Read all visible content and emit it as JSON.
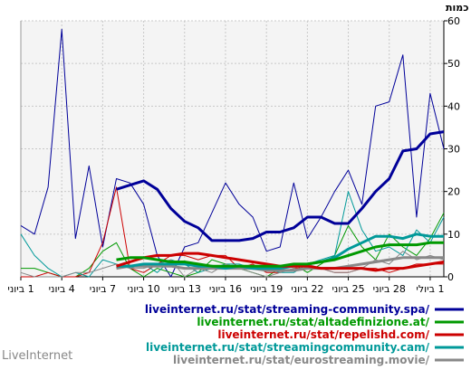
{
  "brand": "LiveInternet",
  "chart_data": {
    "type": "line",
    "ylabel": "כמות",
    "ylim": [
      0,
      60
    ],
    "yticks": [
      0,
      10,
      20,
      30,
      40,
      50,
      60
    ],
    "grid": true,
    "legend_position": "bottom-right",
    "xtick_labels": [
      "1 ביוני",
      "4 ביוני",
      "7 ביוני",
      "10 ביוני",
      "13 ביוני",
      "16 ביוני",
      "19 ביוני",
      "22 ביוני",
      "25 ביוני",
      "28 ביוני",
      "1 ביולי"
    ],
    "xtick_index": [
      0,
      3,
      6,
      9,
      12,
      15,
      18,
      21,
      24,
      27,
      30
    ],
    "series": [
      {
        "name": "liveinternet.ru/stat/streaming-community.spa/",
        "color": "#000099",
        "daily": [
          12,
          10,
          21,
          58,
          9,
          26,
          7,
          23,
          22,
          17,
          5,
          0,
          7,
          8,
          15,
          22,
          17,
          14,
          6,
          7,
          22,
          9,
          14,
          20,
          25,
          17,
          40,
          41,
          52,
          14,
          43,
          30
        ],
        "average": [
          null,
          null,
          null,
          null,
          null,
          null,
          null,
          20.5,
          21.5,
          22.5,
          20.5,
          16,
          13,
          11.5,
          8.5,
          8.5,
          8.5,
          9,
          10.5,
          10.5,
          11.5,
          14,
          14,
          12.5,
          12.5,
          16,
          20,
          23,
          29.5,
          30,
          33.5,
          34
        ]
      },
      {
        "name": "liveinternet.ru/stat/altadefinizione.at/",
        "color": "#009900",
        "daily": [
          2,
          2,
          1,
          0,
          0,
          2,
          6,
          8,
          2,
          0,
          2,
          1,
          0,
          1,
          4,
          3,
          2,
          1,
          0,
          2,
          3,
          1,
          3,
          5,
          12,
          7,
          4,
          10,
          7,
          5,
          9,
          15
        ],
        "average": [
          null,
          null,
          null,
          null,
          null,
          null,
          null,
          4,
          4.5,
          4.5,
          4,
          3.5,
          3.5,
          3,
          2.5,
          2.5,
          2.5,
          2.5,
          2.5,
          2.5,
          3,
          3,
          3.5,
          4,
          5,
          6,
          7,
          7.5,
          7.5,
          7.5,
          8,
          8
        ]
      },
      {
        "name": "liveinternet.ru/stat/repelishd.com/",
        "color": "#cc0000",
        "daily": [
          0,
          0,
          1,
          0,
          0,
          1,
          8,
          21,
          2,
          1,
          3,
          5,
          5,
          4,
          5,
          5,
          2,
          3,
          1,
          1,
          2,
          2,
          2,
          1,
          1,
          2,
          2,
          1,
          2,
          3,
          3,
          3
        ],
        "average": [
          null,
          null,
          null,
          null,
          null,
          null,
          null,
          2.5,
          3.5,
          4.5,
          5,
          5,
          5.5,
          5.5,
          5,
          4.5,
          4,
          3.5,
          3,
          2.5,
          2.5,
          2.5,
          2,
          2,
          2,
          2,
          1.5,
          2,
          2,
          2.5,
          3,
          3.5
        ]
      },
      {
        "name": "liveinternet.ru/stat/streamingcommunity.cam/",
        "color": "#009999",
        "daily": [
          10,
          5,
          2,
          0,
          1,
          0,
          4,
          3,
          2,
          3,
          1,
          4,
          3,
          1,
          2,
          3,
          3,
          2,
          2,
          1,
          1,
          3,
          4,
          5,
          20,
          11,
          6,
          7,
          5,
          11,
          8,
          14
        ],
        "average": [
          null,
          null,
          null,
          null,
          null,
          null,
          null,
          2.5,
          2.5,
          3,
          3,
          3,
          3,
          2.5,
          2.5,
          2,
          2.5,
          2,
          2,
          2,
          2.5,
          3,
          3.5,
          4.5,
          6.5,
          8,
          9.5,
          9.5,
          9,
          10,
          9.5,
          9.5
        ]
      },
      {
        "name": "liveinternet.ru/stat/eurostreaming.movie/",
        "color": "#888888",
        "daily": [
          1,
          0,
          0,
          0,
          1,
          1,
          2,
          3,
          2,
          2,
          3,
          4,
          0,
          2,
          1,
          3,
          2,
          1,
          0,
          1,
          2,
          3,
          2,
          1,
          1,
          2,
          4,
          3,
          6,
          4,
          5,
          4
        ],
        "average": [
          null,
          null,
          null,
          null,
          null,
          null,
          null,
          2,
          2.5,
          2.5,
          2.5,
          2.5,
          2,
          2,
          2,
          2,
          2,
          2,
          1.5,
          1.5,
          1.5,
          2,
          2,
          2,
          2.5,
          3,
          3.5,
          4,
          4.5,
          4.5,
          4.5,
          4.5
        ]
      }
    ]
  }
}
